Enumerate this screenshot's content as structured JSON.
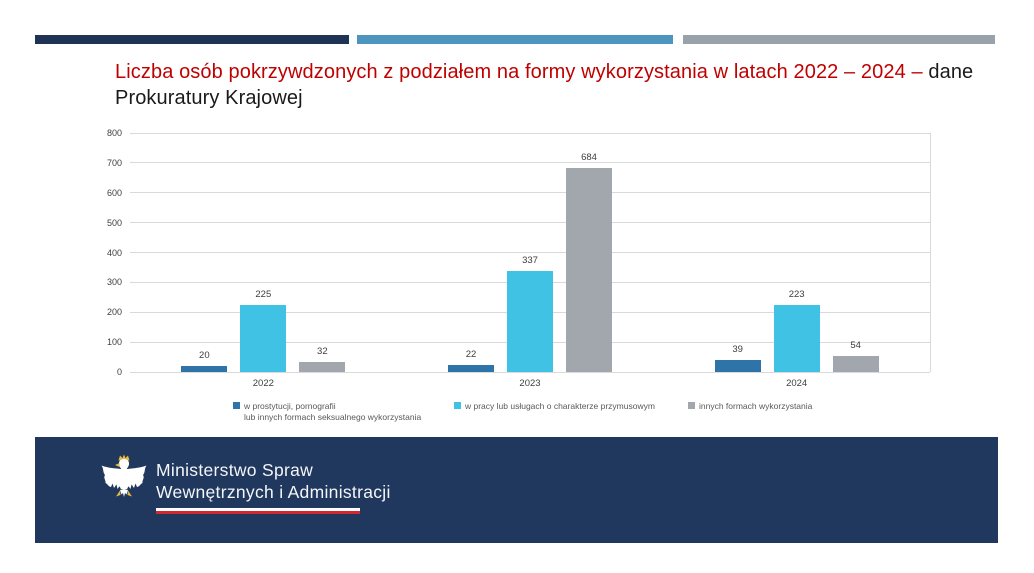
{
  "decor": {
    "bar_colors": {
      "navy": "#1F3455",
      "blue": "#4D94BE",
      "gray": "#9AA2A9"
    }
  },
  "title": {
    "red_text": "Liczba osób pokrzywdzonych z podziałem na formy wykorzystania w latach 2022 – 2024 –",
    "black_line1_suffix": " dane",
    "black_line2": "Prokuratury Krajowej",
    "red_color": "#C00000"
  },
  "chart_data": {
    "type": "bar",
    "categories": [
      "2022",
      "2023",
      "2024"
    ],
    "series": [
      {
        "name": "w prostytucji, pornografii lub innych formach seksualnego wykorzystania",
        "color": "#2E74A8",
        "values": [
          20,
          22,
          39
        ]
      },
      {
        "name": "w pracy lub usługach o charakterze przymusowym",
        "color": "#3FC2E3",
        "values": [
          225,
          337,
          223
        ]
      },
      {
        "name": "innych formach wykorzystania",
        "color": "#A1A7AD",
        "values": [
          32,
          684,
          54
        ]
      }
    ],
    "title": "",
    "xlabel": "",
    "ylabel": "",
    "ylim": [
      0,
      800
    ],
    "yticks": [
      0,
      100,
      200,
      300,
      400,
      500,
      600,
      700,
      800
    ],
    "grid": true,
    "legend_position": "bottom",
    "legend": [
      {
        "lines": [
          "w prostytucji, pornografii",
          "lub innych formach seksualnego wykorzystania"
        ],
        "color": "#2E74A8"
      },
      {
        "lines": [
          "w pracy lub usługach o charakterze przymusowym"
        ],
        "color": "#3FC2E3"
      },
      {
        "lines": [
          "innych formach wykorzystania"
        ],
        "color": "#A1A7AD"
      }
    ]
  },
  "footer": {
    "bg": "#20375E",
    "org_line1": "Ministerstwo Spraw",
    "org_line2": "Wewnętrznych i Administracji",
    "flag_red": "#D22630",
    "eagle_gold": "#E9B943",
    "logo": "polish-eagle"
  }
}
